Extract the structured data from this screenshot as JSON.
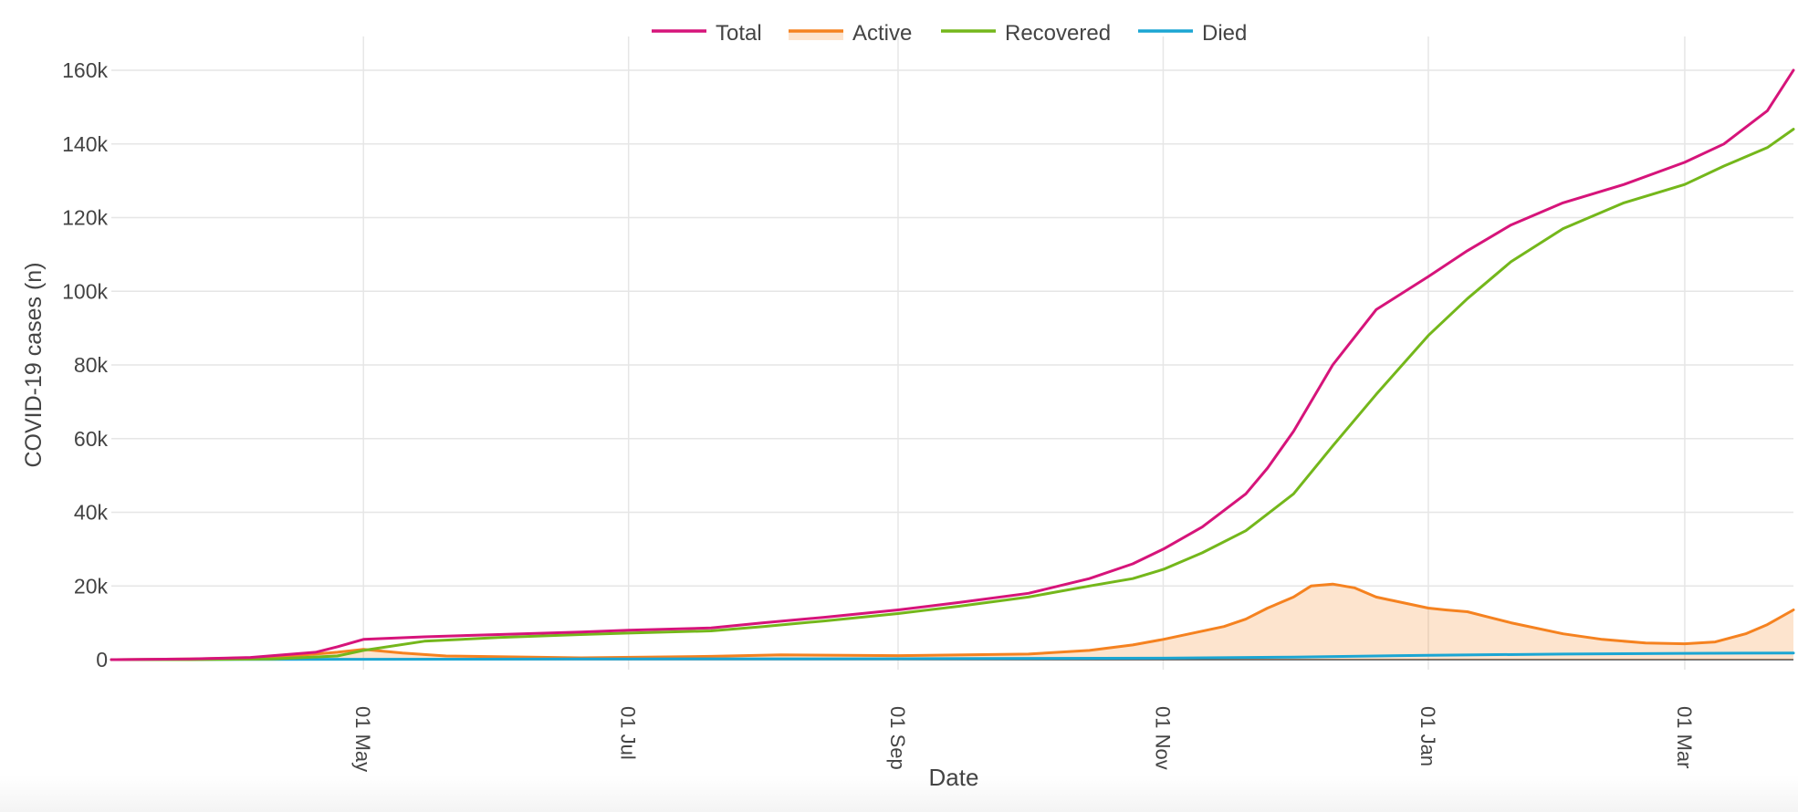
{
  "chart_data": {
    "type": "line",
    "title": "",
    "xlabel": "Date",
    "ylabel": "COVID-19 cases (n)",
    "x_ticks": [
      {
        "date": "2020-05-01",
        "label": "01 May"
      },
      {
        "date": "2020-07-01",
        "label": "01 Jul"
      },
      {
        "date": "2020-09-01",
        "label": "01 Sep"
      },
      {
        "date": "2020-11-01",
        "label": "01 Nov"
      },
      {
        "date": "2021-01-01",
        "label": "01 Jan"
      },
      {
        "date": "2021-03-01",
        "label": "01 Mar"
      }
    ],
    "y_ticks": [
      {
        "value": 0,
        "label": "0"
      },
      {
        "value": 20000,
        "label": "20k"
      },
      {
        "value": 40000,
        "label": "40k"
      },
      {
        "value": 60000,
        "label": "60k"
      },
      {
        "value": 80000,
        "label": "80k"
      },
      {
        "value": 100000,
        "label": "100k"
      },
      {
        "value": 120000,
        "label": "120k"
      },
      {
        "value": 140000,
        "label": "140k"
      },
      {
        "value": 160000,
        "label": "160k"
      }
    ],
    "xlim": [
      "2020-03-04",
      "2021-03-26"
    ],
    "ylim": [
      -1000,
      166000
    ],
    "grid": true,
    "legend_position": "top-center",
    "series": [
      {
        "name": "Total",
        "color": "#d6147a",
        "fill": false,
        "points": [
          [
            "2020-03-04",
            0
          ],
          [
            "2020-03-22",
            200
          ],
          [
            "2020-04-05",
            600
          ],
          [
            "2020-04-20",
            2000
          ],
          [
            "2020-04-25",
            3500
          ],
          [
            "2020-05-01",
            5500
          ],
          [
            "2020-05-15",
            6200
          ],
          [
            "2020-06-01",
            6800
          ],
          [
            "2020-06-20",
            7500
          ],
          [
            "2020-07-01",
            8000
          ],
          [
            "2020-07-20",
            8600
          ],
          [
            "2020-08-01",
            10000
          ],
          [
            "2020-08-15",
            11500
          ],
          [
            "2020-09-01",
            13500
          ],
          [
            "2020-09-15",
            15500
          ],
          [
            "2020-10-01",
            18000
          ],
          [
            "2020-10-15",
            22000
          ],
          [
            "2020-10-25",
            26000
          ],
          [
            "2020-11-01",
            30000
          ],
          [
            "2020-11-10",
            36000
          ],
          [
            "2020-11-20",
            45000
          ],
          [
            "2020-11-25",
            52000
          ],
          [
            "2020-12-01",
            62000
          ],
          [
            "2020-12-10",
            80000
          ],
          [
            "2020-12-20",
            95000
          ],
          [
            "2021-01-01",
            104000
          ],
          [
            "2021-01-10",
            111000
          ],
          [
            "2021-01-20",
            118000
          ],
          [
            "2021-02-01",
            124000
          ],
          [
            "2021-02-15",
            129000
          ],
          [
            "2021-03-01",
            135000
          ],
          [
            "2021-03-10",
            140000
          ],
          [
            "2021-03-20",
            149000
          ],
          [
            "2021-03-26",
            160000
          ]
        ]
      },
      {
        "name": "Active",
        "color": "#f58220",
        "fill": true,
        "fillcolor": "rgba(245,130,32,0.22)",
        "points": [
          [
            "2020-03-04",
            0
          ],
          [
            "2020-03-22",
            200
          ],
          [
            "2020-04-10",
            600
          ],
          [
            "2020-04-25",
            2000
          ],
          [
            "2020-05-01",
            2800
          ],
          [
            "2020-05-10",
            1800
          ],
          [
            "2020-05-20",
            1000
          ],
          [
            "2020-06-20",
            500
          ],
          [
            "2020-07-20",
            900
          ],
          [
            "2020-08-05",
            1300
          ],
          [
            "2020-09-01",
            1100
          ],
          [
            "2020-10-01",
            1500
          ],
          [
            "2020-10-15",
            2500
          ],
          [
            "2020-10-25",
            4000
          ],
          [
            "2020-11-01",
            5500
          ],
          [
            "2020-11-15",
            9000
          ],
          [
            "2020-11-20",
            11000
          ],
          [
            "2020-11-25",
            14000
          ],
          [
            "2020-12-01",
            17000
          ],
          [
            "2020-12-05",
            20000
          ],
          [
            "2020-12-10",
            20500
          ],
          [
            "2020-12-15",
            19500
          ],
          [
            "2020-12-20",
            17000
          ],
          [
            "2021-01-01",
            14000
          ],
          [
            "2021-01-05",
            13500
          ],
          [
            "2021-01-10",
            13000
          ],
          [
            "2021-01-15",
            11500
          ],
          [
            "2021-01-20",
            10000
          ],
          [
            "2021-02-01",
            7000
          ],
          [
            "2021-02-10",
            5500
          ],
          [
            "2021-02-20",
            4500
          ],
          [
            "2021-03-01",
            4300
          ],
          [
            "2021-03-08",
            4800
          ],
          [
            "2021-03-15",
            7000
          ],
          [
            "2021-03-20",
            9500
          ],
          [
            "2021-03-26",
            13500
          ]
        ]
      },
      {
        "name": "Recovered",
        "color": "#74b71b",
        "fill": false,
        "points": [
          [
            "2020-03-04",
            0
          ],
          [
            "2020-03-22",
            0
          ],
          [
            "2020-04-10",
            200
          ],
          [
            "2020-04-25",
            1000
          ],
          [
            "2020-05-01",
            2500
          ],
          [
            "2020-05-15",
            5000
          ],
          [
            "2020-06-01",
            6000
          ],
          [
            "2020-06-20",
            6800
          ],
          [
            "2020-07-01",
            7200
          ],
          [
            "2020-07-20",
            7800
          ],
          [
            "2020-08-01",
            9000
          ],
          [
            "2020-08-15",
            10500
          ],
          [
            "2020-09-01",
            12500
          ],
          [
            "2020-09-15",
            14500
          ],
          [
            "2020-10-01",
            17000
          ],
          [
            "2020-10-15",
            20000
          ],
          [
            "2020-10-25",
            22000
          ],
          [
            "2020-11-01",
            24500
          ],
          [
            "2020-11-10",
            29000
          ],
          [
            "2020-11-20",
            35000
          ],
          [
            "2020-12-01",
            45000
          ],
          [
            "2020-12-10",
            58000
          ],
          [
            "2020-12-20",
            72000
          ],
          [
            "2021-01-01",
            88000
          ],
          [
            "2021-01-10",
            98000
          ],
          [
            "2021-01-20",
            108000
          ],
          [
            "2021-02-01",
            117000
          ],
          [
            "2021-02-15",
            124000
          ],
          [
            "2021-03-01",
            129000
          ],
          [
            "2021-03-10",
            134000
          ],
          [
            "2021-03-20",
            139000
          ],
          [
            "2021-03-26",
            144000
          ]
        ]
      },
      {
        "name": "Died",
        "color": "#1ba6d3",
        "fill": false,
        "points": [
          [
            "2020-03-04",
            0
          ],
          [
            "2020-05-01",
            100
          ],
          [
            "2020-07-01",
            200
          ],
          [
            "2020-09-01",
            250
          ],
          [
            "2020-11-01",
            400
          ],
          [
            "2020-12-01",
            700
          ],
          [
            "2021-01-01",
            1200
          ],
          [
            "2021-02-01",
            1500
          ],
          [
            "2021-03-01",
            1700
          ],
          [
            "2021-03-26",
            1800
          ]
        ]
      }
    ]
  }
}
